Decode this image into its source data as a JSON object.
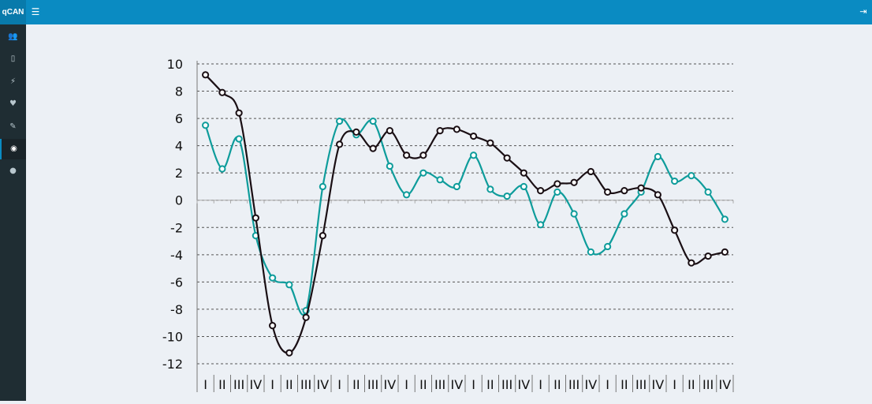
{
  "app": {
    "logo": "qCAN"
  },
  "icons": {
    "menu": "hamburger-icon",
    "logout": "sign-out-icon"
  },
  "sidebar": {
    "items": [
      {
        "icon": "users-icon",
        "glyph": "👥"
      },
      {
        "icon": "book-icon",
        "glyph": "▯"
      },
      {
        "icon": "plug-icon",
        "glyph": "⚡"
      },
      {
        "icon": "heartbeat-icon",
        "glyph": "♥"
      },
      {
        "icon": "wrench-icon",
        "glyph": "✎"
      },
      {
        "icon": "eye-icon",
        "glyph": "◉",
        "active": true
      },
      {
        "icon": "globe-icon",
        "glyph": "●"
      }
    ]
  },
  "chart_data": {
    "type": "line",
    "title": "",
    "xlabel": "",
    "ylabel": "",
    "ylim": [
      -12,
      10
    ],
    "yticks": [
      10,
      8,
      6,
      4,
      2,
      0,
      -2,
      -4,
      -6,
      -8,
      -10,
      -12
    ],
    "grid": true,
    "categories": [
      "I",
      "II",
      "III",
      "IV",
      "I",
      "II",
      "III",
      "IV",
      "I",
      "II",
      "III",
      "IV",
      "I",
      "II",
      "III",
      "IV",
      "I",
      "II",
      "III",
      "IV",
      "I",
      "II",
      "III",
      "IV",
      "I",
      "II",
      "III",
      "IV",
      "I",
      "II",
      "III",
      "IV"
    ],
    "series": [
      {
        "color": "#0e9c9b",
        "values": [
          5.5,
          2.3,
          4.5,
          -2.6,
          -5.7,
          -6.2,
          -8.1,
          1.0,
          5.8,
          4.8,
          5.8,
          2.5,
          0.4,
          2.0,
          1.5,
          1.0,
          3.3,
          0.8,
          0.3,
          1.0,
          -1.8,
          0.6,
          -1.0,
          -3.8,
          -3.4,
          -1.0,
          0.6,
          3.2,
          1.4,
          1.8,
          0.6,
          -1.4
        ]
      },
      {
        "color": "#1a0f14",
        "values": [
          9.2,
          7.9,
          6.4,
          -1.3,
          -9.2,
          -11.2,
          -8.6,
          -2.6,
          4.1,
          5.0,
          3.8,
          5.1,
          3.3,
          3.3,
          5.1,
          5.2,
          4.7,
          4.2,
          3.1,
          2.0,
          0.7,
          1.2,
          1.3,
          2.1,
          0.6,
          0.7,
          0.9,
          0.4,
          -2.2,
          -4.6,
          -4.1,
          -3.8
        ]
      }
    ]
  }
}
